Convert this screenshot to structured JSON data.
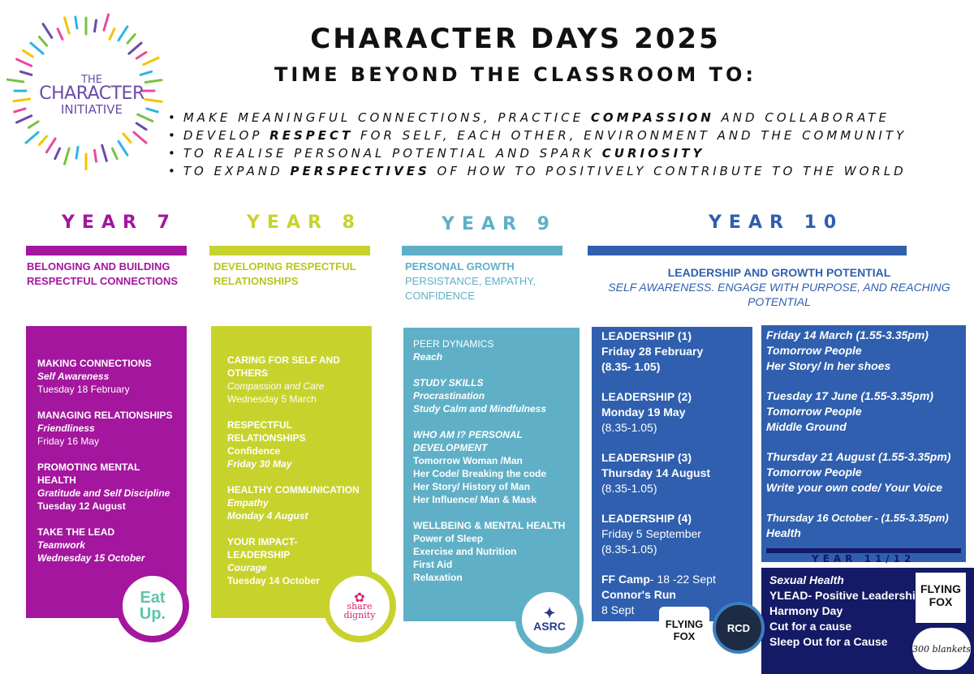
{
  "logo": {
    "line1": "THE",
    "line2": "CHARACTER",
    "line3": "INITIATIVE"
  },
  "header": {
    "title": "CHARACTER DAYS 2025",
    "subtitle": "TIME BEYOND THE CLASSROOM TO:"
  },
  "aims": [
    {
      "pre": "MAKE MEANINGFUL CONNECTIONS, PRACTICE ",
      "bold": "COMPASSION",
      "post": " AND COLLABORATE"
    },
    {
      "pre": "DEVELOP ",
      "bold": "RESPECT",
      "post": " FOR SELF, EACH OTHER, ENVIRONMENT AND THE  COMMUNITY"
    },
    {
      "pre": "TO REALISE PERSONAL POTENTIAL AND SPARK ",
      "bold": "CURIOSITY",
      "post": ""
    },
    {
      "pre": "TO EXPAND ",
      "bold": "PERSPECTIVES",
      "post": " OF HOW TO POSITIVELY CONTRIBUTE TO THE WORLD"
    }
  ],
  "colors": {
    "year7": "#a4169e",
    "year8": "#c7d32c",
    "year9": "#5fb0c7",
    "year10": "#2f5fae",
    "year11_12": "#141a66"
  },
  "year7": {
    "label": "YEAR 7",
    "theme": "BELONGING AND BUILDING RESPECTFUL CONNECTIONS",
    "items": [
      {
        "h": "MAKING CONNECTIONS",
        "b": "Self Awareness",
        "n": "Tuesday 18 February"
      },
      {
        "h": "MANAGING RELATIONSHIPS",
        "b": "Friendliness",
        "n": "Friday 16 May"
      },
      {
        "h": "PROMOTING MENTAL HEALTH",
        "b": "Gratitude and Self Discipline",
        "d": "Tuesday  12 August"
      },
      {
        "h": "TAKE THE LEAD",
        "b": "Teamwork",
        "b2": "Wednesday 15 October"
      }
    ],
    "partner": {
      "line1": "Eat",
      "line2": "Up."
    }
  },
  "year8": {
    "label": "YEAR 8",
    "theme": "DEVELOPING  RESPECTFUL RELATIONSHIPS",
    "items": [
      {
        "h": "CARING FOR SELF AND OTHERS",
        "i": "Compassion and Care",
        "n": "Wednesday 5 March"
      },
      {
        "h": "RESPECTFUL RELATIONSHIPS",
        "d": "Confidence",
        "b": "Friday 30 May"
      },
      {
        "h": "HEALTHY COMMUNICATION",
        "b": "Empathy",
        "b2": "Monday 4 August"
      },
      {
        "h": "YOUR IMPACT- LEADERSHIP",
        "b": "Courage",
        "d": "Tuesday 14 October"
      }
    ],
    "partner": {
      "line1": "share",
      "line2": "dignity"
    }
  },
  "year9": {
    "label": "YEAR 9",
    "theme": "PERSONAL GROWTH",
    "theme_sub": "PERSISTANCE, EMPATHY, CONFIDENCE",
    "items": [
      {
        "n": "PEER DYNAMICS",
        "b": "Reach"
      },
      {
        "b": "STUDY SKILLS",
        "lines": [
          "Procrastination",
          "Study Calm and Mindfulness"
        ]
      },
      {
        "b": "WHO AM I? PERSONAL DEVELOPMENT",
        "plain": [
          "Tomorrow Woman /Man",
          "Her Code/ Breaking the code",
          "Her Story/ History of Man",
          "Her Influence/ Man & Mask"
        ]
      },
      {
        "h": "WELLBEING & MENTAL HEALTH",
        "plain": [
          "Power of Sleep",
          "Exercise and Nutrition",
          "First Aid",
          "Relaxation"
        ]
      }
    ],
    "partner": {
      "line1": "ASRC"
    }
  },
  "year10": {
    "label": "YEAR 10",
    "theme": "LEADERSHIP AND GROWTH POTENTIAL",
    "theme_sub": "SELF AWARENESS. ENGAGE WITH PURPOSE, AND REACHING POTENTIAL",
    "left": [
      {
        "h": "LEADERSHIP (1)",
        "h2": "Friday 28 February",
        "h3": "(8.35- 1.05)"
      },
      {
        "h": "LEADERSHIP (2)",
        "h2": "Monday 19 May",
        "n": "(8.35-1.05)"
      },
      {
        "h": "LEADERSHIP (3)",
        "h2": "Thursday 14 August",
        "n": "(8.35-1.05)"
      },
      {
        "h": "LEADERSHIP (4)",
        "n": "Friday 5 September",
        "n2": "(8.35-1.05)"
      }
    ],
    "camp": {
      "bold": "FF Camp",
      "rest": "- 18 -22 Sept",
      "run": "Connor's Run",
      "date": "8 Sept"
    },
    "right": [
      {
        "bi": "Friday 14 March (1.55-3.35pm)",
        "bi2": "Tomorrow People",
        "bi3": "Her Story/ In her shoes"
      },
      {
        "bi": "Tuesday 17 June (1.55-3.35pm)",
        "bi2": "Tomorrow People",
        "bi3": "Middle Ground"
      },
      {
        "bi": "Thursday 21 August (1.55-3.35pm)",
        "bi2": "Tomorrow People",
        "bi3": "Write your own code/ Your Voice"
      },
      {
        "bi": "Thursday 16 October - (1.55-3.35pm)",
        "bi2": "Health"
      }
    ]
  },
  "year11_12": {
    "label": "YEAR 11/12",
    "items": [
      "Sexual Health",
      "YLEAD- Positive Leadership",
      "Harmony Day",
      "Cut for a cause",
      "Sleep Out for a Cause"
    ]
  },
  "partners": {
    "flying_fox_1": "FLYING FOX",
    "rcd": "RCD",
    "flying_fox_2": "FLYING FOX",
    "blankets": "300 blankets"
  }
}
